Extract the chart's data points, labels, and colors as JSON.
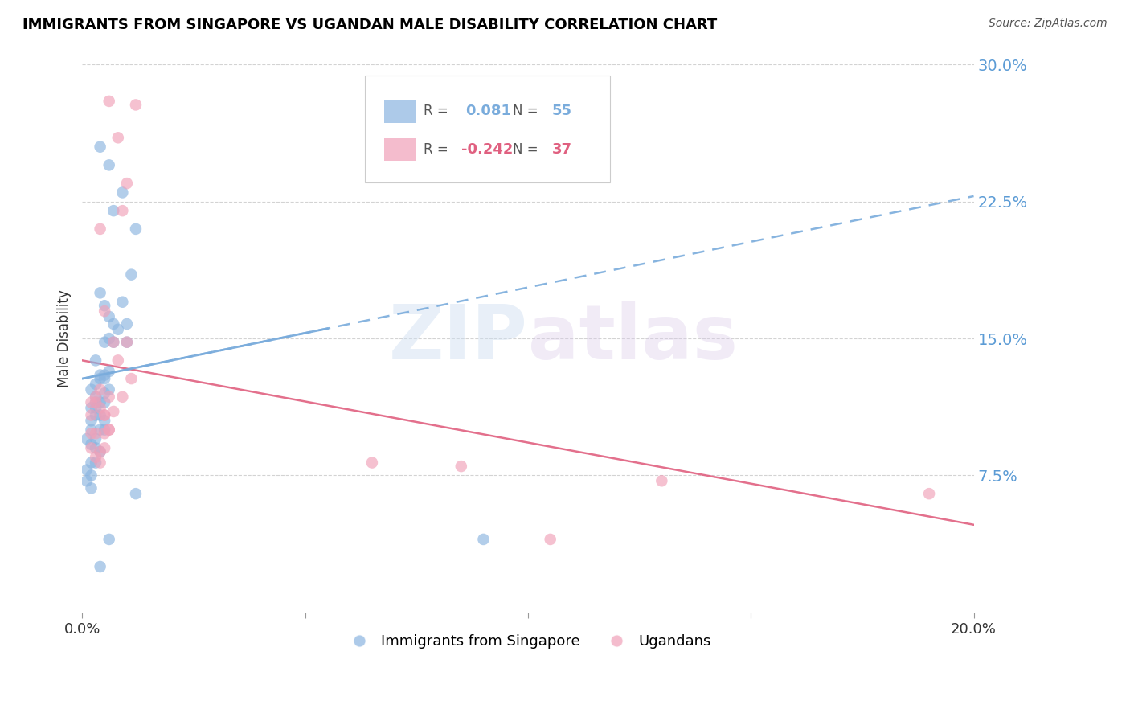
{
  "title": "IMMIGRANTS FROM SINGAPORE VS UGANDAN MALE DISABILITY CORRELATION CHART",
  "source": "Source: ZipAtlas.com",
  "ylabel": "Male Disability",
  "legend_label1": "Immigrants from Singapore",
  "legend_label2": "Ugandans",
  "R1": "0.081",
  "N1": "55",
  "R2": "-0.242",
  "N2": "37",
  "xlim": [
    0.0,
    0.2
  ],
  "ylim": [
    0.0,
    0.3
  ],
  "yticks": [
    0.075,
    0.15,
    0.225,
    0.3
  ],
  "ytick_labels": [
    "7.5%",
    "15.0%",
    "22.5%",
    "30.0%"
  ],
  "xticks": [
    0.0,
    0.05,
    0.1,
    0.15,
    0.2
  ],
  "xtick_labels": [
    "0.0%",
    "",
    "",
    "",
    "20.0%"
  ],
  "color1": "#8ab4e0",
  "color2": "#f0a0b8",
  "trendline1_color": "#7aacdc",
  "trendline2_color": "#e06080",
  "watermark_zip": "ZIP",
  "watermark_atlas": "atlas",
  "blue_trend_x0": 0.0,
  "blue_trend_y0": 0.128,
  "blue_trend_x1": 0.2,
  "blue_trend_y1": 0.228,
  "pink_trend_x0": 0.0,
  "pink_trend_y0": 0.138,
  "pink_trend_x1": 0.2,
  "pink_trend_y1": 0.048,
  "blue_scatter_x": [
    0.004,
    0.006,
    0.007,
    0.009,
    0.011,
    0.012,
    0.004,
    0.005,
    0.006,
    0.007,
    0.008,
    0.009,
    0.01,
    0.003,
    0.004,
    0.005,
    0.006,
    0.005,
    0.006,
    0.007,
    0.002,
    0.003,
    0.003,
    0.004,
    0.004,
    0.005,
    0.005,
    0.005,
    0.006,
    0.002,
    0.003,
    0.003,
    0.003,
    0.004,
    0.004,
    0.005,
    0.005,
    0.001,
    0.002,
    0.002,
    0.002,
    0.003,
    0.003,
    0.003,
    0.004,
    0.001,
    0.001,
    0.002,
    0.002,
    0.002,
    0.01,
    0.012,
    0.09,
    0.006,
    0.004
  ],
  "blue_scatter_y": [
    0.255,
    0.245,
    0.22,
    0.23,
    0.185,
    0.21,
    0.175,
    0.168,
    0.162,
    0.158,
    0.155,
    0.17,
    0.158,
    0.138,
    0.13,
    0.128,
    0.132,
    0.148,
    0.15,
    0.148,
    0.122,
    0.118,
    0.125,
    0.115,
    0.128,
    0.12,
    0.115,
    0.13,
    0.122,
    0.112,
    0.108,
    0.115,
    0.112,
    0.1,
    0.108,
    0.105,
    0.1,
    0.095,
    0.092,
    0.1,
    0.105,
    0.082,
    0.09,
    0.095,
    0.088,
    0.072,
    0.078,
    0.075,
    0.068,
    0.082,
    0.148,
    0.065,
    0.04,
    0.04,
    0.025
  ],
  "pink_scatter_x": [
    0.006,
    0.008,
    0.01,
    0.012,
    0.004,
    0.009,
    0.005,
    0.007,
    0.008,
    0.009,
    0.01,
    0.011,
    0.004,
    0.005,
    0.006,
    0.006,
    0.007,
    0.003,
    0.004,
    0.005,
    0.005,
    0.006,
    0.003,
    0.004,
    0.005,
    0.002,
    0.003,
    0.003,
    0.004,
    0.002,
    0.002,
    0.002,
    0.065,
    0.085,
    0.13,
    0.19,
    0.105
  ],
  "pink_scatter_y": [
    0.28,
    0.26,
    0.235,
    0.278,
    0.21,
    0.22,
    0.165,
    0.148,
    0.138,
    0.118,
    0.148,
    0.128,
    0.122,
    0.108,
    0.118,
    0.1,
    0.11,
    0.098,
    0.088,
    0.098,
    0.108,
    0.1,
    0.085,
    0.082,
    0.09,
    0.115,
    0.115,
    0.118,
    0.112,
    0.09,
    0.098,
    0.108,
    0.082,
    0.08,
    0.072,
    0.065,
    0.04
  ]
}
